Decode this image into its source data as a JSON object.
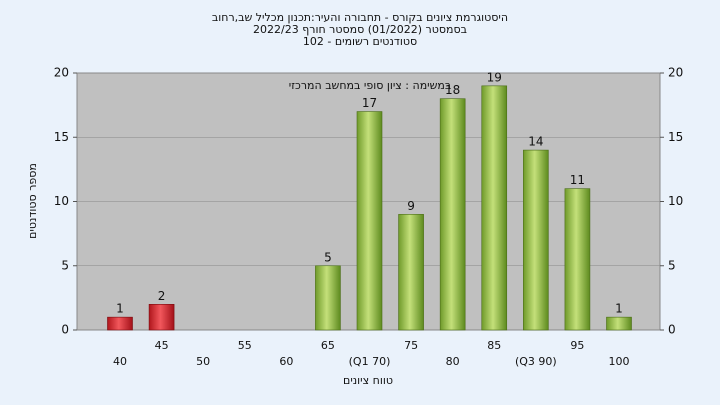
{
  "chart_data": {
    "type": "bar",
    "title": [
      "היסטוגרמת ציונים בקורס - תחבורה והעיר:תכנון מכליל שב,רחוב",
      "בסמסטר (01/2022) סמסטר חורף 2022/23",
      "סטודנטים רשומים - 102"
    ],
    "annotation": "במשימה : ציון סופי במחשב המרכזי",
    "x_label": "טווח ציונים",
    "y_label": "מספר סטודנטים",
    "categories": [
      "40",
      "45",
      "50",
      "55",
      "60",
      "65",
      "(Q1 70)",
      "75",
      "80",
      "85",
      "(Q3 90)",
      "95",
      "100"
    ],
    "values": [
      1,
      2,
      0,
      0,
      0,
      5,
      17,
      9,
      18,
      19,
      14,
      11,
      1
    ],
    "colors": [
      "red",
      "red",
      "green",
      "green",
      "green",
      "green",
      "green",
      "green",
      "green",
      "green",
      "green",
      "green",
      "green"
    ],
    "ylim": [
      0,
      20
    ],
    "yticks": [
      0,
      5,
      10,
      15,
      20
    ],
    "y2lim": [
      0,
      20
    ],
    "y2ticks": [
      0,
      5,
      10,
      15,
      20
    ],
    "grid": true
  }
}
